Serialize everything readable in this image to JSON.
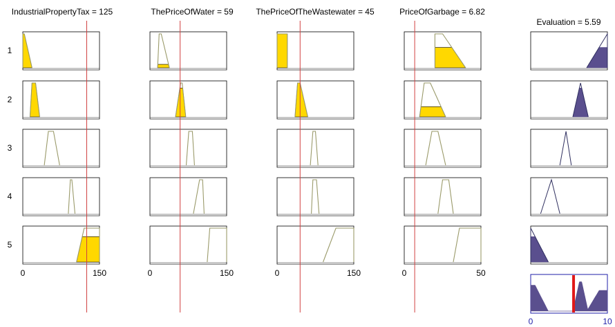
{
  "chart_data": {
    "type": "fuzzy-rule-viewer",
    "inputs": [
      {
        "name": "IndustrialPropertyTax",
        "value": 125,
        "range": [
          0,
          150
        ],
        "title": "IndustrialPropertyTax = 125",
        "tick_labels": [
          "0",
          "150"
        ]
      },
      {
        "name": "ThePriceOfWater",
        "value": 59,
        "range": [
          0,
          150
        ],
        "title": "ThePriceOfWater = 59",
        "tick_labels": [
          "0",
          "150"
        ]
      },
      {
        "name": "ThePriceOfTheWastewater",
        "value": 45,
        "range": [
          0,
          150
        ],
        "title": "ThePriceOfTheWastewater = 45",
        "tick_labels": [
          "0",
          "150"
        ]
      },
      {
        "name": "PriceOfGarbage",
        "value": 6.82,
        "range": [
          0,
          50
        ],
        "title": "PriceOfGarbage = 6.82",
        "tick_labels": [
          "0",
          "50"
        ]
      }
    ],
    "output": {
      "name": "Evaluation",
      "value": 5.59,
      "range": [
        0,
        10
      ],
      "title": "Evaluation = 5.59",
      "tick_labels": [
        "0",
        "10"
      ]
    },
    "rule_labels": [
      "1",
      "2",
      "3",
      "4",
      "5"
    ],
    "input_mfs": [
      [
        [
          0,
          0,
          3,
          18
        ],
        [
          15,
          18,
          22,
          38
        ],
        [
          0,
          0,
          20,
          20
        ],
        [
          20,
          20,
          25,
          40
        ]
      ],
      [
        [
          14,
          18,
          25,
          33
        ],
        [
          50,
          60,
          63,
          70
        ],
        [
          35,
          40,
          45,
          60
        ],
        [
          10,
          13,
          17,
          27
        ]
      ],
      [
        [
          42,
          50,
          60,
          72
        ],
        [
          71,
          76,
          83,
          87
        ],
        [
          65,
          70,
          75,
          80
        ],
        [
          14,
          18,
          22,
          27
        ]
      ],
      [
        [
          89,
          93,
          96,
          102
        ],
        [
          85,
          97,
          103,
          106
        ],
        [
          67,
          70,
          77,
          82
        ],
        [
          22,
          25,
          29,
          32
        ]
      ],
      [
        [
          105,
          120,
          150,
          150
        ],
        [
          112,
          117,
          150,
          150
        ],
        [
          90,
          115,
          150,
          150
        ],
        [
          32,
          36,
          50,
          50
        ]
      ]
    ],
    "firing": [
      [
        1,
        0.1,
        1,
        0.6
      ],
      [
        1,
        0.85,
        1,
        0.3
      ],
      [
        0,
        0,
        0,
        0
      ],
      [
        0,
        0,
        0,
        0
      ],
      [
        0.75,
        0,
        0,
        0
      ]
    ],
    "output_mfs": [
      [
        7.3,
        10,
        10,
        10
      ],
      [
        5.5,
        6.5,
        6.5,
        7.5
      ],
      [
        3.8,
        4.6,
        4.6,
        5.3
      ],
      [
        1.3,
        2.7,
        2.7,
        3.8
      ],
      [
        0,
        0,
        0,
        2.3
      ]
    ],
    "output_firing": [
      0.6,
      0.85,
      0,
      0,
      0.75
    ],
    "colors": {
      "mf_line": "#9a9a6a",
      "input_fill": "#ffd800",
      "output_fill": "#5a4f8e",
      "indicator_line": "#d04040",
      "result_bar": "#e01818",
      "axis_text": "#1f1fa8",
      "baseline": "#c8c8c8"
    }
  }
}
